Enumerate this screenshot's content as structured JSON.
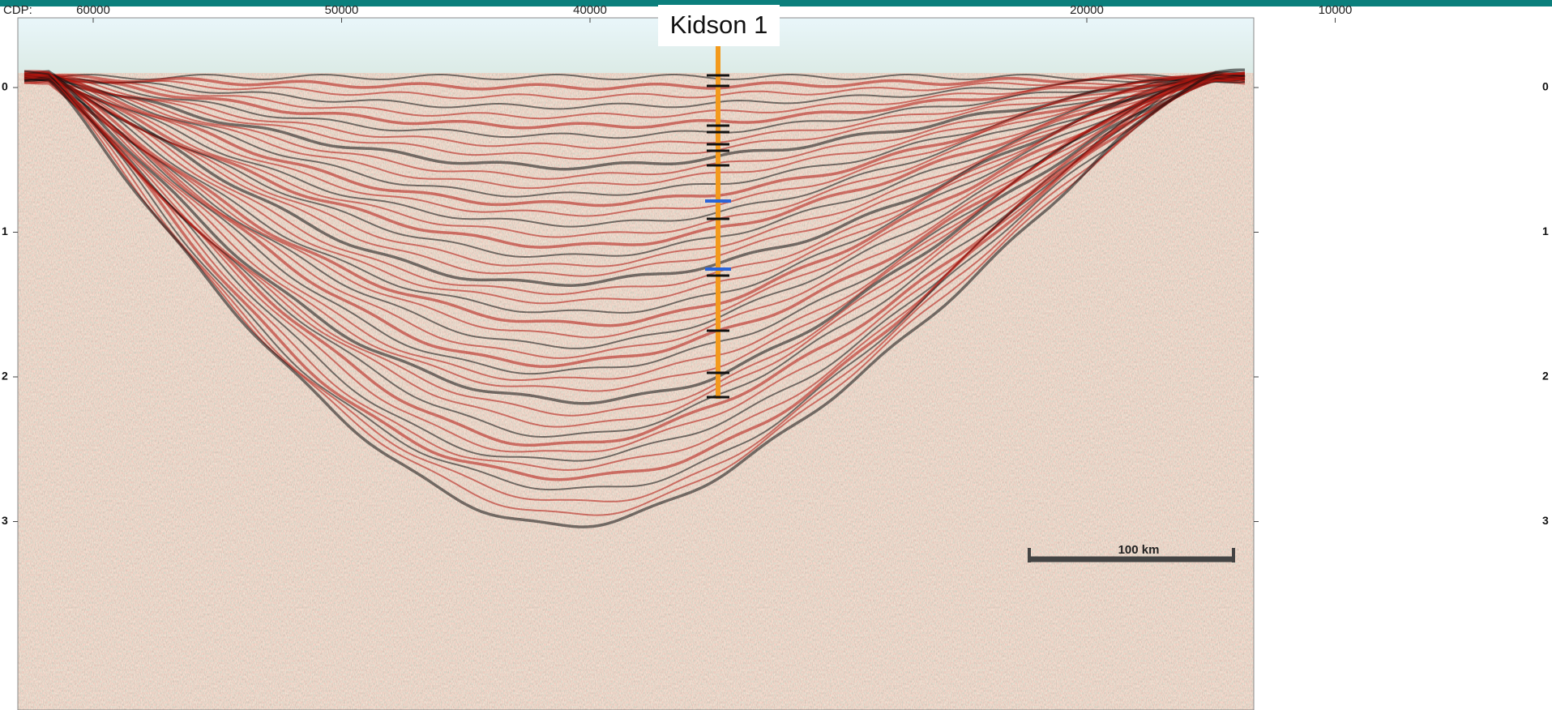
{
  "header": {
    "axis_label": "CDP:"
  },
  "x_axis": {
    "ticks": [
      60000,
      50000,
      40000,
      20000,
      10000
    ]
  },
  "y_axis": {
    "ticks": [
      0,
      1,
      2,
      3
    ]
  },
  "well": {
    "label": "Kidson 1"
  },
  "scale_bar": {
    "label": "100 km"
  }
}
